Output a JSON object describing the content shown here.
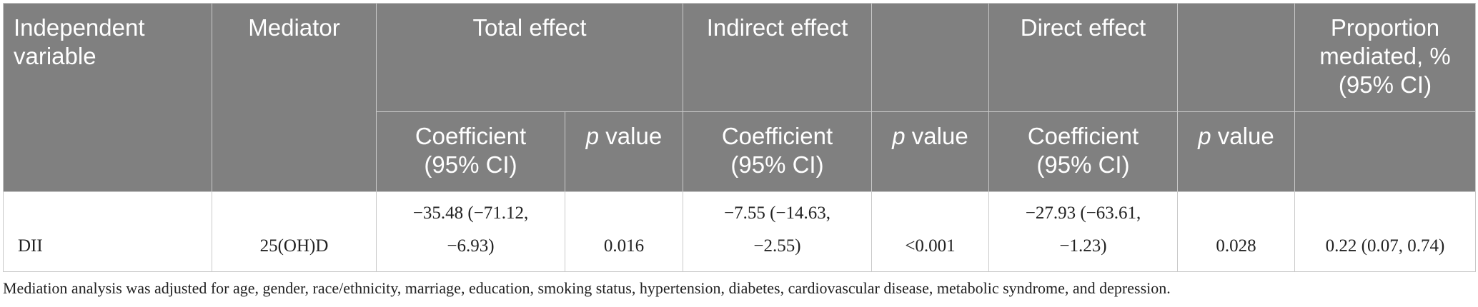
{
  "table": {
    "headers": {
      "independent_variable": "Independent variable",
      "mediator": "Mediator",
      "total_effect": "Total effect",
      "indirect_effect": "Indirect effect",
      "direct_effect": "Direct effect",
      "proportion_mediated": "Proportion mediated, % (95% CI)",
      "coefficient": "Coefficient (95% CI)",
      "p_prefix": "p",
      "p_suffix": " value"
    },
    "rows": [
      {
        "independent_variable": "DII",
        "mediator": "25(OH)D",
        "total_coef_line1": "−35.48 (−71.12,",
        "total_coef_line2": "−6.93)",
        "total_p": "0.016",
        "indirect_coef_line1": "−7.55 (−14.63,",
        "indirect_coef_line2": "−2.55)",
        "indirect_p": "<0.001",
        "direct_coef_line1": "−27.93 (−63.61,",
        "direct_coef_line2": "−1.23)",
        "direct_p": "0.028",
        "proportion": "0.22 (0.07, 0.74)"
      }
    ],
    "footnote": "Mediation analysis was adjusted for age, gender, race/ethnicity, marriage, education, smoking status, hypertension, diabetes, cardiovascular disease, metabolic syndrome, and depression."
  }
}
